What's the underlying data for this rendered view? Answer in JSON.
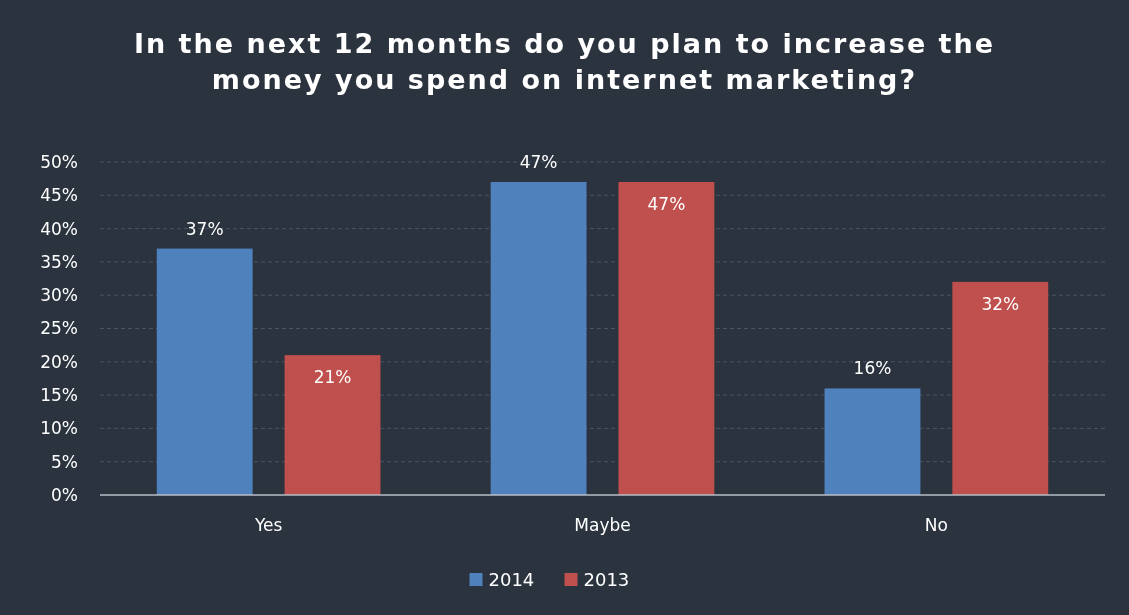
{
  "chart_data": {
    "type": "bar",
    "title": "In the next 12 months do you plan to increase the money you spend on internet marketing?",
    "categories": [
      "Yes",
      "Maybe",
      "No"
    ],
    "series": [
      {
        "name": "2014",
        "color": "#4f81bd",
        "values": [
          37,
          47,
          16
        ]
      },
      {
        "name": "2013",
        "color": "#c0504d",
        "values": [
          21,
          47,
          32
        ]
      }
    ],
    "ylim": [
      0,
      50
    ],
    "yticks": [
      {
        "value": 0,
        "label": "0%"
      },
      {
        "value": 5,
        "label": "5%"
      },
      {
        "value": 10,
        "label": "10%"
      },
      {
        "value": 15,
        "label": "15%"
      },
      {
        "value": 20,
        "label": "20%"
      },
      {
        "value": 25,
        "label": "25%"
      },
      {
        "value": 30,
        "label": "30%"
      },
      {
        "value": 35,
        "label": "35%"
      },
      {
        "value": 40,
        "label": "40%"
      },
      {
        "value": 45,
        "label": "45%"
      },
      {
        "value": 50,
        "label": "50%"
      }
    ],
    "grid": "y",
    "legend": "bottom",
    "value_labels": [
      [
        "37%",
        "47%",
        "16%"
      ],
      [
        "21%",
        "47%",
        "32%"
      ]
    ]
  }
}
